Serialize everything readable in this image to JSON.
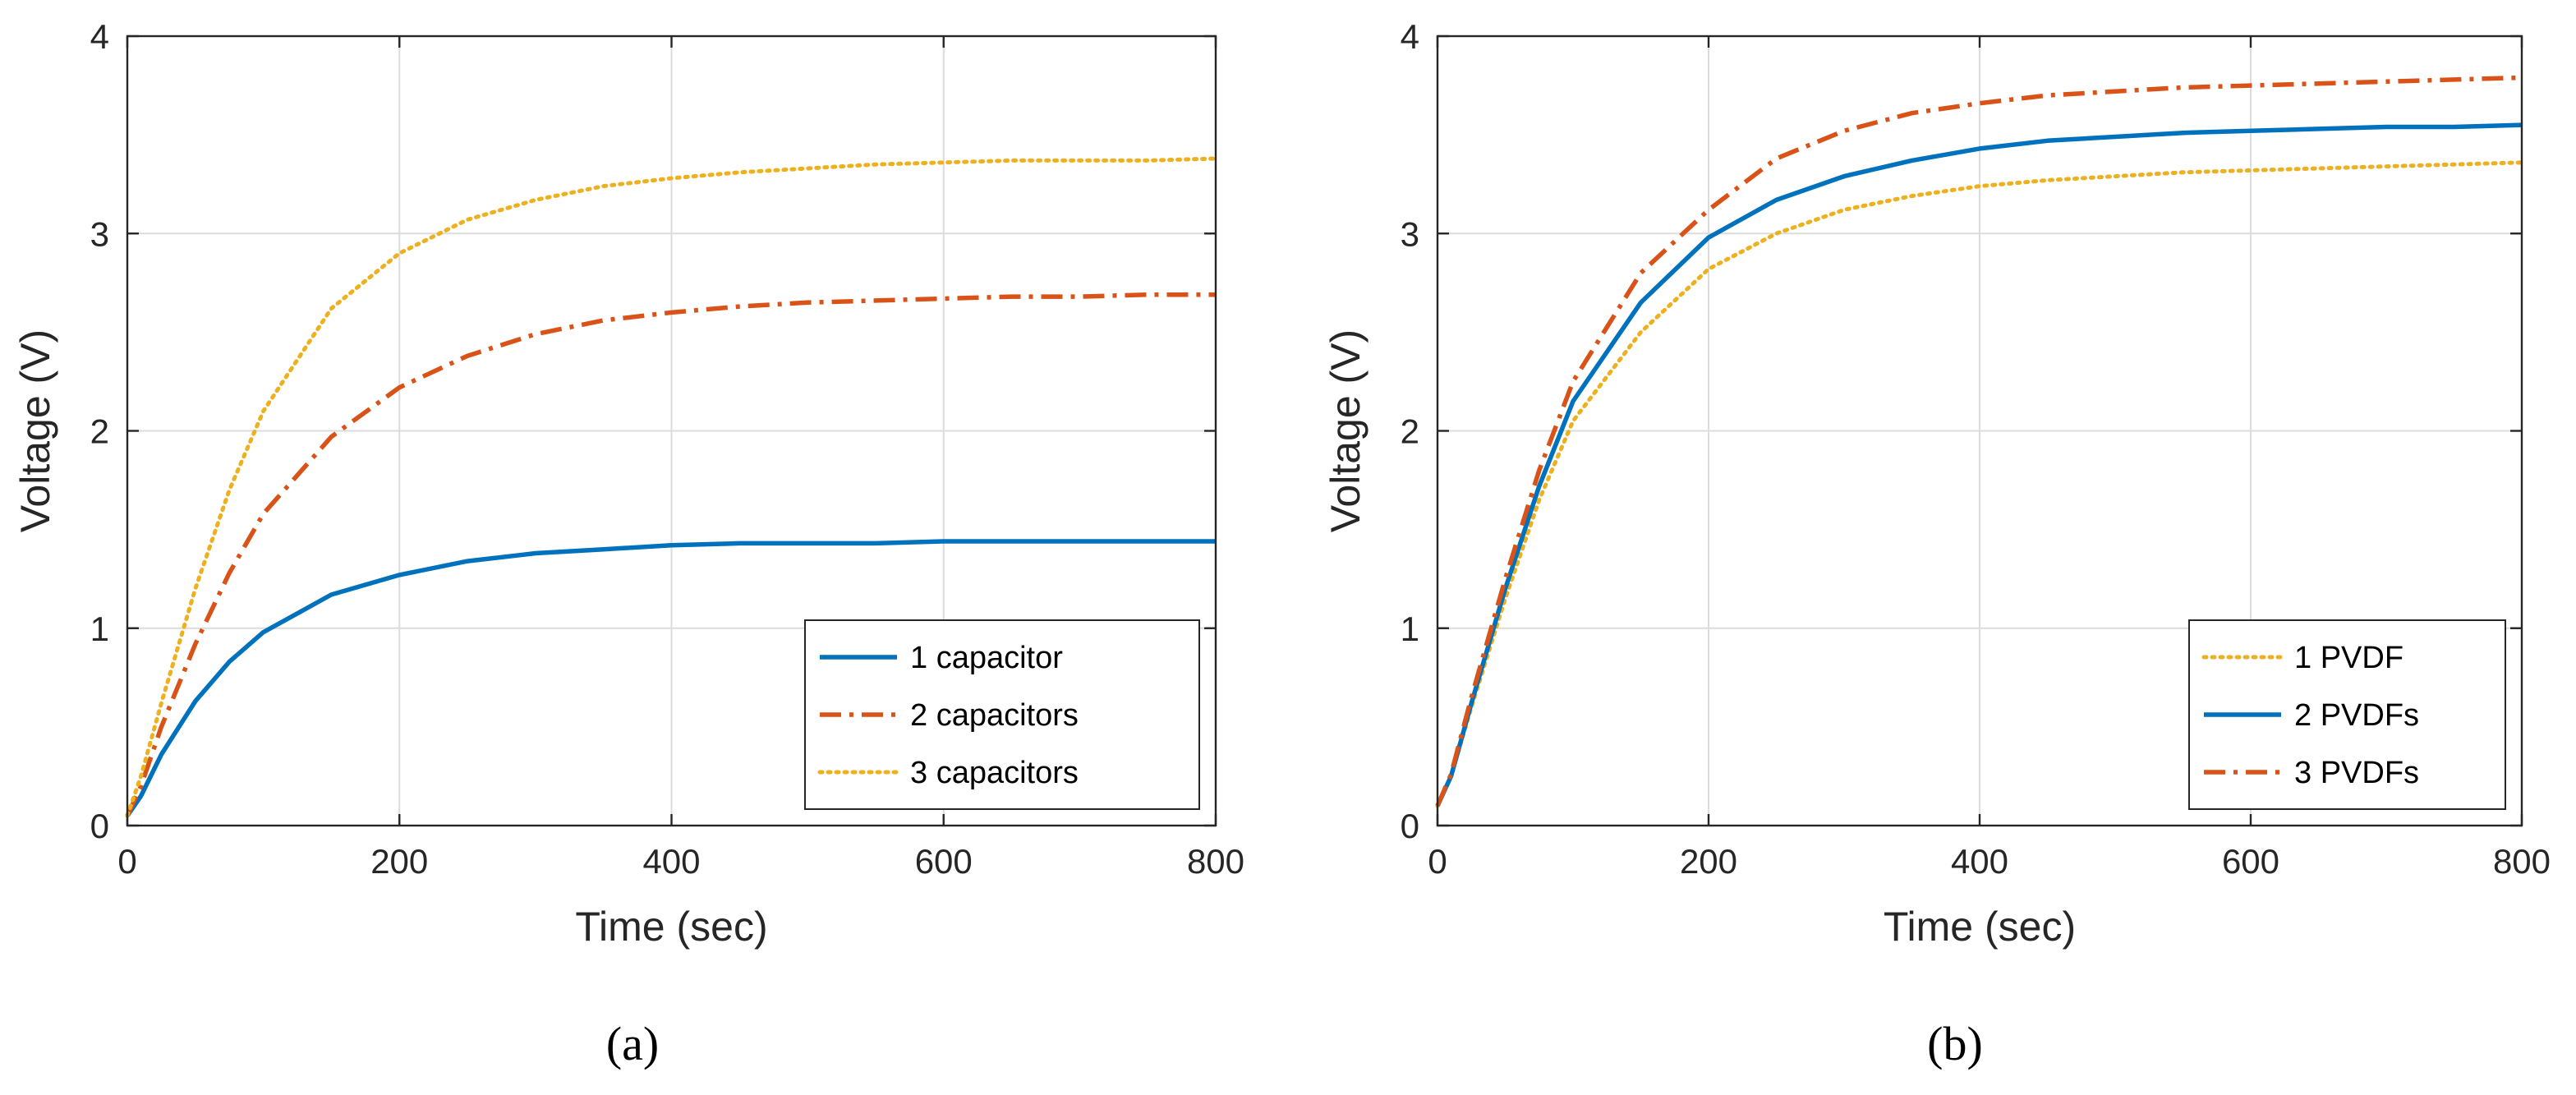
{
  "chart_data": [
    {
      "type": "line",
      "panel_id": "a",
      "caption": "(a)",
      "xlabel": "Time (sec)",
      "ylabel": "Voltage (V)",
      "xlim": [
        0,
        800
      ],
      "ylim": [
        0,
        4
      ],
      "xticks": [
        0,
        200,
        400,
        600,
        800
      ],
      "yticks": [
        0,
        1,
        2,
        3,
        4
      ],
      "xtick_labels": [
        "0",
        "200",
        "400",
        "600",
        "800"
      ],
      "ytick_labels": [
        "0",
        "1",
        "2",
        "3",
        "4"
      ],
      "grid": true,
      "legend_position": "bottom-right",
      "x": [
        0,
        10,
        25,
        50,
        75,
        100,
        150,
        200,
        250,
        300,
        350,
        400,
        450,
        500,
        550,
        600,
        650,
        700,
        750,
        800
      ],
      "series": [
        {
          "name": "1 capacitor",
          "color": "#0072BD",
          "style": "solid",
          "values": [
            0.05,
            0.15,
            0.36,
            0.63,
            0.83,
            0.98,
            1.17,
            1.27,
            1.34,
            1.38,
            1.4,
            1.42,
            1.43,
            1.43,
            1.43,
            1.44,
            1.44,
            1.44,
            1.44,
            1.44
          ]
        },
        {
          "name": "2 capacitors",
          "color": "#D95319",
          "style": "dashdot",
          "values": [
            0.05,
            0.2,
            0.5,
            0.92,
            1.28,
            1.58,
            1.97,
            2.22,
            2.38,
            2.49,
            2.56,
            2.6,
            2.63,
            2.65,
            2.66,
            2.67,
            2.68,
            2.68,
            2.69,
            2.69
          ]
        },
        {
          "name": "3 capacitors",
          "color": "#EDB120",
          "style": "dotted",
          "values": [
            0.05,
            0.25,
            0.62,
            1.2,
            1.7,
            2.1,
            2.62,
            2.9,
            3.07,
            3.17,
            3.24,
            3.28,
            3.31,
            3.33,
            3.35,
            3.36,
            3.37,
            3.37,
            3.37,
            3.38
          ]
        }
      ]
    },
    {
      "type": "line",
      "panel_id": "b",
      "caption": "(b)",
      "xlabel": "Time (sec)",
      "ylabel": "Voltage (V)",
      "xlim": [
        0,
        800
      ],
      "ylim": [
        0,
        4
      ],
      "xticks": [
        0,
        200,
        400,
        600,
        800
      ],
      "yticks": [
        0,
        1,
        2,
        3,
        4
      ],
      "xtick_labels": [
        "0",
        "200",
        "400",
        "600",
        "800"
      ],
      "ytick_labels": [
        "0",
        "1",
        "2",
        "3",
        "4"
      ],
      "grid": true,
      "legend_position": "bottom-right",
      "x": [
        0,
        10,
        25,
        50,
        75,
        100,
        150,
        200,
        250,
        300,
        350,
        400,
        450,
        500,
        550,
        600,
        650,
        700,
        750,
        800
      ],
      "series": [
        {
          "name": "1 PVDF",
          "color": "#EDB120",
          "style": "dotted",
          "values": [
            0.1,
            0.25,
            0.6,
            1.15,
            1.65,
            2.05,
            2.5,
            2.82,
            3.0,
            3.12,
            3.19,
            3.24,
            3.27,
            3.29,
            3.31,
            3.32,
            3.33,
            3.34,
            3.35,
            3.36
          ]
        },
        {
          "name": "2 PVDFs",
          "color": "#0072BD",
          "style": "solid",
          "values": [
            0.1,
            0.25,
            0.62,
            1.2,
            1.72,
            2.15,
            2.65,
            2.98,
            3.17,
            3.29,
            3.37,
            3.43,
            3.47,
            3.49,
            3.51,
            3.52,
            3.53,
            3.54,
            3.54,
            3.55
          ]
        },
        {
          "name": "3 PVDFs",
          "color": "#D95319",
          "style": "dashdot",
          "values": [
            0.1,
            0.26,
            0.65,
            1.25,
            1.8,
            2.25,
            2.8,
            3.12,
            3.38,
            3.52,
            3.61,
            3.66,
            3.7,
            3.72,
            3.74,
            3.75,
            3.76,
            3.77,
            3.78,
            3.79
          ]
        }
      ]
    }
  ]
}
